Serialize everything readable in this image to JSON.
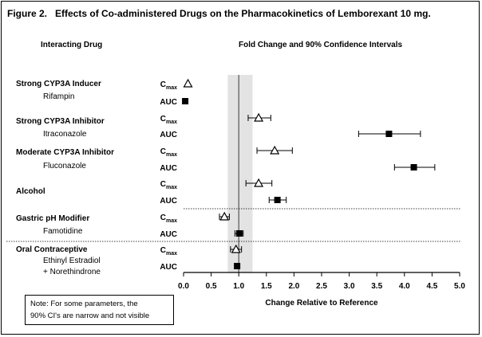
{
  "figure_title": "Figure 2.   Effects of Co-administered Drugs on the Pharmacokinetics of Lemborexant 10 mg.",
  "left_header": "Interacting Drug",
  "right_header": "Fold Change and 90% Confidence Intervals",
  "note_lines": [
    "Note: For some parameters, the",
    "90% CI's are narrow and not visible"
  ],
  "chart_data": {
    "type": "forest",
    "xlabel": "Change Relative to Reference",
    "xlim": [
      0,
      5.0
    ],
    "x_ticks": [
      "0.0",
      "0.5",
      "1.0",
      "1.5",
      "2.0",
      "2.5",
      "3.0",
      "3.5",
      "4.0",
      "4.5",
      "5.0"
    ],
    "reference_line": 1.0,
    "shaded_band": [
      0.8,
      1.25
    ],
    "groups": [
      {
        "label": "Strong CYP3A Inducer",
        "drugs": [
          "Rifampin"
        ]
      },
      {
        "label": "Strong CYP3A Inhibitor",
        "drugs": [
          "Itraconazole"
        ]
      },
      {
        "label": "Moderate CYP3A Inhibitor",
        "drugs": [
          "Fluconazole"
        ]
      },
      {
        "label": "Alcohol",
        "drugs": []
      },
      {
        "label": "Gastric pH Modifier",
        "drugs": [
          "Famotidine"
        ]
      },
      {
        "label": "Oral Contraceptive",
        "drugs": [
          "Ethinyl Estradiol",
          "+ Norethindrone"
        ]
      }
    ],
    "param_labels": {
      "cmax_main": "C",
      "cmax_sub": "max",
      "auc": "AUC"
    },
    "rows": [
      {
        "group": 0,
        "param": "cmax",
        "value": 0.08,
        "ci": [
          0.08,
          0.08
        ]
      },
      {
        "group": 0,
        "param": "auc",
        "value": 0.03,
        "ci": [
          0.03,
          0.03
        ]
      },
      {
        "group": 1,
        "param": "cmax",
        "value": 1.36,
        "ci": [
          1.17,
          1.58
        ]
      },
      {
        "group": 1,
        "param": "auc",
        "value": 3.72,
        "ci": [
          3.17,
          4.29
        ]
      },
      {
        "group": 2,
        "param": "cmax",
        "value": 1.65,
        "ci": [
          1.33,
          1.97
        ]
      },
      {
        "group": 2,
        "param": "auc",
        "value": 4.17,
        "ci": [
          3.82,
          4.55
        ]
      },
      {
        "group": 3,
        "param": "cmax",
        "value": 1.36,
        "ci": [
          1.13,
          1.6
        ]
      },
      {
        "group": 3,
        "param": "auc",
        "value": 1.7,
        "ci": [
          1.55,
          1.86
        ]
      },
      {
        "group": 4,
        "param": "cmax",
        "value": 0.74,
        "ci": [
          0.65,
          0.83
        ]
      },
      {
        "group": 4,
        "param": "auc",
        "value": 1.01,
        "ci": [
          0.93,
          1.08
        ]
      },
      {
        "group": 5,
        "param": "cmax",
        "value": 0.95,
        "ci": [
          0.85,
          1.05
        ]
      },
      {
        "group": 5,
        "param": "auc",
        "value": 0.97,
        "ci": [
          0.97,
          0.97
        ]
      }
    ]
  }
}
